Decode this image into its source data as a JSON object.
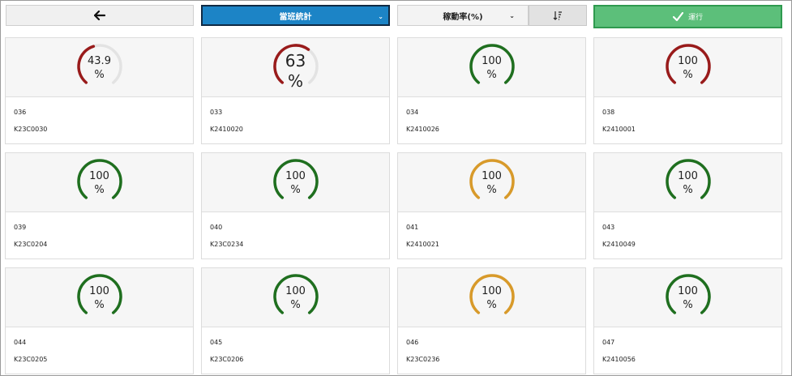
{
  "toolbar": {
    "back_icon": "arrow-left-icon",
    "shift_select": "當班統計",
    "metric_select": "稼動率(%)",
    "sort_icon": "sort-descending-icon",
    "run_label": "運行",
    "run_icon": "check-icon"
  },
  "colors": {
    "red": "#991b1b",
    "green": "#1f6f1f",
    "orange": "#d89a2a",
    "track": "#e3e3e3"
  },
  "cards": [
    {
      "id": "036",
      "code": "K23C0030",
      "value": "43.9",
      "unit": "%",
      "pct": 43.9,
      "color": "#991b1b",
      "big": false
    },
    {
      "id": "033",
      "code": "K2410020",
      "value": "63",
      "unit": "%",
      "pct": 63,
      "color": "#991b1b",
      "big": true
    },
    {
      "id": "034",
      "code": "K2410026",
      "value": "100",
      "unit": "%",
      "pct": 100,
      "color": "#1f6f1f",
      "big": false
    },
    {
      "id": "038",
      "code": "K2410001",
      "value": "100",
      "unit": "%",
      "pct": 100,
      "color": "#991b1b",
      "big": false
    },
    {
      "id": "039",
      "code": "K23C0204",
      "value": "100",
      "unit": "%",
      "pct": 100,
      "color": "#1f6f1f",
      "big": false
    },
    {
      "id": "040",
      "code": "K23C0234",
      "value": "100",
      "unit": "%",
      "pct": 100,
      "color": "#1f6f1f",
      "big": false
    },
    {
      "id": "041",
      "code": "K2410021",
      "value": "100",
      "unit": "%",
      "pct": 100,
      "color": "#d89a2a",
      "big": false
    },
    {
      "id": "043",
      "code": "K2410049",
      "value": "100",
      "unit": "%",
      "pct": 100,
      "color": "#1f6f1f",
      "big": false
    },
    {
      "id": "044",
      "code": "K23C0205",
      "value": "100",
      "unit": "%",
      "pct": 100,
      "color": "#1f6f1f",
      "big": false
    },
    {
      "id": "045",
      "code": "K23C0206",
      "value": "100",
      "unit": "%",
      "pct": 100,
      "color": "#1f6f1f",
      "big": false
    },
    {
      "id": "046",
      "code": "K23C0236",
      "value": "100",
      "unit": "%",
      "pct": 100,
      "color": "#d89a2a",
      "big": false
    },
    {
      "id": "047",
      "code": "K2410056",
      "value": "100",
      "unit": "%",
      "pct": 100,
      "color": "#1f6f1f",
      "big": false
    }
  ]
}
